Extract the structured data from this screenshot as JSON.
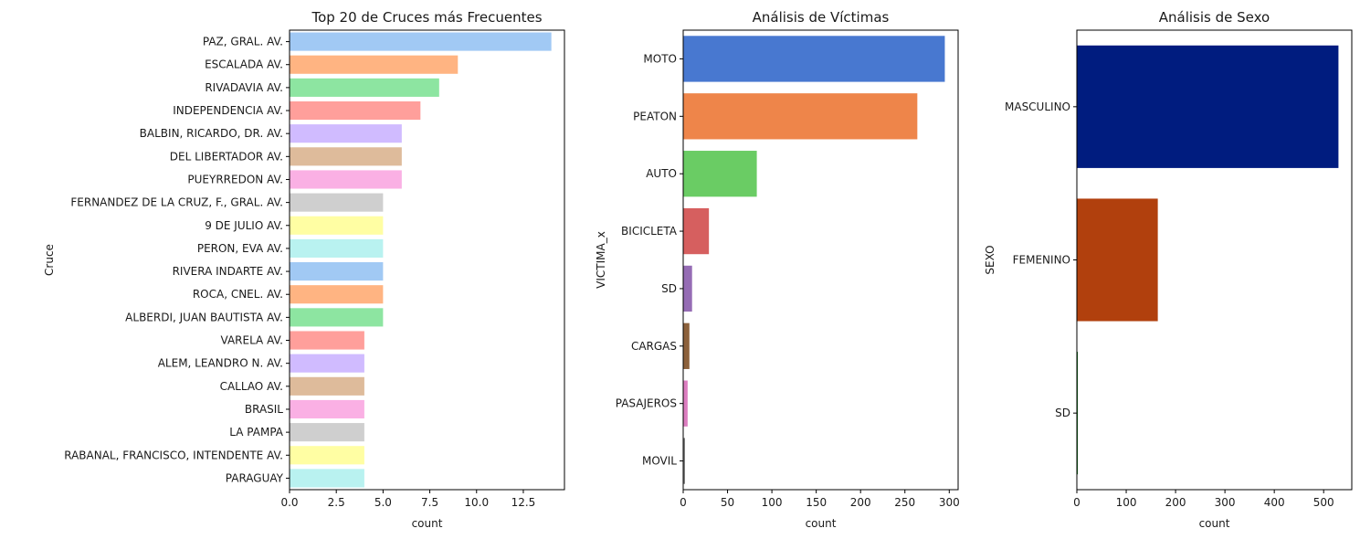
{
  "chart_data": [
    {
      "type": "bar",
      "orientation": "horizontal",
      "title": "Top 20 de Cruces más Frecuentes",
      "xlabel": "count",
      "ylabel": "Cruce",
      "xlim": [
        0,
        14.7
      ],
      "xticks": [
        "0.0",
        "2.5",
        "5.0",
        "7.5",
        "10.0",
        "12.5"
      ],
      "xtick_values": [
        0,
        2.5,
        5,
        7.5,
        10,
        12.5
      ],
      "categories": [
        "PAZ, GRAL. AV.",
        "ESCALADA AV.",
        "RIVADAVIA AV.",
        "INDEPENDENCIA AV.",
        "BALBIN, RICARDO, DR. AV.",
        "DEL LIBERTADOR AV.",
        "PUEYRREDON AV.",
        "FERNANDEZ DE LA CRUZ, F., GRAL. AV.",
        "9 DE JULIO AV.",
        "PERON, EVA AV.",
        "RIVERA INDARTE AV.",
        "ROCA, CNEL. AV.",
        "ALBERDI, JUAN BAUTISTA AV.",
        "VARELA AV.",
        "ALEM, LEANDRO N. AV.",
        "CALLAO AV.",
        "BRASIL",
        "LA PAMPA",
        "RABANAL, FRANCISCO, INTENDENTE AV.",
        "PARAGUAY"
      ],
      "values": [
        14,
        9,
        8,
        7,
        6,
        6,
        6,
        5,
        5,
        5,
        5,
        5,
        5,
        4,
        4,
        4,
        4,
        4,
        4,
        4
      ],
      "colors": [
        "#a1c9f4",
        "#ffb482",
        "#8de5a1",
        "#ff9f9b",
        "#d0bbff",
        "#debb9b",
        "#fab0e4",
        "#cfcfcf",
        "#fffea3",
        "#b9f2f0",
        "#a1c9f4",
        "#ffb482",
        "#8de5a1",
        "#ff9f9b",
        "#d0bbff",
        "#debb9b",
        "#fab0e4",
        "#cfcfcf",
        "#fffea3",
        "#b9f2f0"
      ],
      "grid": false
    },
    {
      "type": "bar",
      "orientation": "horizontal",
      "title": "Análisis de Víctimas",
      "xlabel": "count",
      "ylabel": "VICTIMA_x",
      "xlim": [
        0,
        310
      ],
      "xticks": [
        "0",
        "50",
        "100",
        "150",
        "200",
        "250",
        "300"
      ],
      "xtick_values": [
        0,
        50,
        100,
        150,
        200,
        250,
        300
      ],
      "categories": [
        "MOTO",
        "PEATON",
        "AUTO",
        "BICICLETA",
        "SD",
        "CARGAS",
        "PASAJEROS",
        "MOVIL"
      ],
      "values": [
        295,
        264,
        83,
        29,
        10,
        7,
        5,
        2
      ],
      "colors": [
        "#4878d0",
        "#ee854a",
        "#6acc64",
        "#d65f5f",
        "#956cb4",
        "#8c613c",
        "#dc7ec0",
        "#797979"
      ],
      "grid": false
    },
    {
      "type": "bar",
      "orientation": "horizontal",
      "title": "Análisis de Sexo",
      "xlabel": "count",
      "ylabel": "SEXO",
      "xlim": [
        0,
        557
      ],
      "xticks": [
        "0",
        "100",
        "200",
        "300",
        "400",
        "500"
      ],
      "xtick_values": [
        0,
        100,
        200,
        300,
        400,
        500
      ],
      "categories": [
        "MASCULINO",
        "FEMENINO",
        "SD"
      ],
      "values": [
        530,
        164,
        2
      ],
      "colors": [
        "#001c7f",
        "#b1400d",
        "#12711c"
      ],
      "grid": false
    }
  ]
}
